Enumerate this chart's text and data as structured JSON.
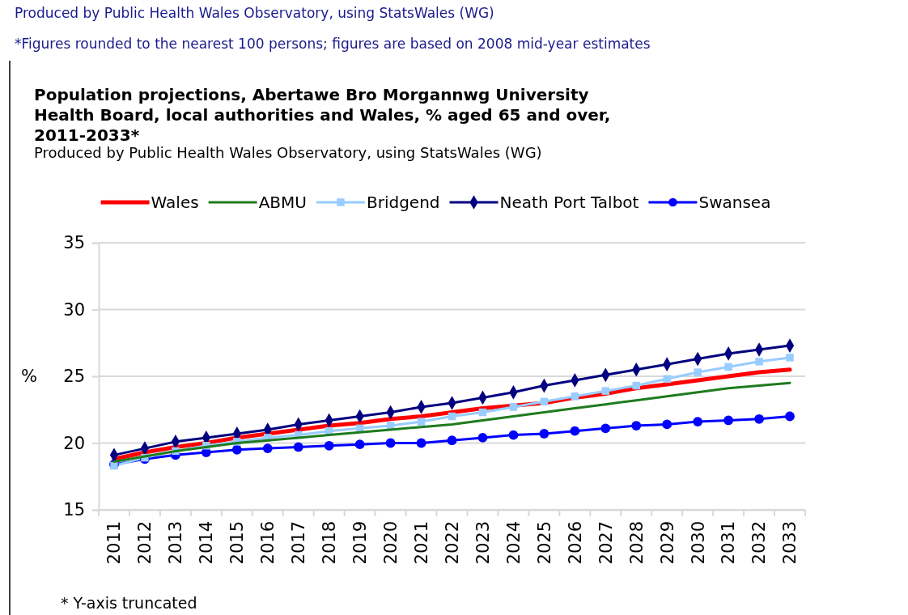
{
  "chart_data": {
    "type": "line",
    "title": "Population projections, Abertawe Bro Morgannwg University Health Board, local authorities and Wales, % aged 65 and over, 2011-2033*",
    "subtitle": "Produced by Public Health Wales Observatory, using StatsWales (WG)",
    "annotations": [
      "Produced by Public Health Wales Observatory, using StatsWales (WG)",
      "*Figures rounded to the nearest 100 persons; figures are based on 2008 mid-year estimates",
      "* Y-axis truncated"
    ],
    "ylabel": "%",
    "categories": [
      "2011",
      "2012",
      "2013",
      "2014",
      "2015",
      "2016",
      "2017",
      "2018",
      "2019",
      "2020",
      "2021",
      "2022",
      "2023",
      "2024",
      "2025",
      "2026",
      "2027",
      "2028",
      "2029",
      "2030",
      "2031",
      "2032",
      "2033"
    ],
    "series": [
      {
        "name": "Wales",
        "color": "#ff0000",
        "marker": "none",
        "values": [
          18.8,
          19.3,
          19.7,
          20.0,
          20.4,
          20.7,
          21.0,
          21.3,
          21.5,
          21.8,
          22.0,
          22.3,
          22.6,
          22.8,
          23.0,
          23.4,
          23.7,
          24.1,
          24.4,
          24.7,
          25.0,
          25.3,
          25.5
        ]
      },
      {
        "name": "ABMU",
        "color": "#1e7b1e",
        "marker": "none",
        "values": [
          18.6,
          19.0,
          19.4,
          19.7,
          20.0,
          20.2,
          20.4,
          20.6,
          20.8,
          21.0,
          21.2,
          21.4,
          21.7,
          22.0,
          22.3,
          22.6,
          22.9,
          23.2,
          23.5,
          23.8,
          24.1,
          24.3,
          24.5
        ]
      },
      {
        "name": "Bridgend",
        "color": "#99ccff",
        "marker": "square",
        "values": [
          18.3,
          18.9,
          19.4,
          19.8,
          20.1,
          20.4,
          20.6,
          20.9,
          21.1,
          21.3,
          21.6,
          22.0,
          22.3,
          22.7,
          23.1,
          23.5,
          23.9,
          24.3,
          24.8,
          25.3,
          25.7,
          26.1,
          26.4
        ]
      },
      {
        "name": "Neath Port Talbot",
        "color": "#000080",
        "marker": "diamond",
        "values": [
          19.1,
          19.6,
          20.1,
          20.4,
          20.7,
          21.0,
          21.4,
          21.7,
          22.0,
          22.3,
          22.7,
          23.0,
          23.4,
          23.8,
          24.3,
          24.7,
          25.1,
          25.5,
          25.9,
          26.3,
          26.7,
          27.0,
          27.3
        ]
      },
      {
        "name": "Swansea",
        "color": "#0000ff",
        "marker": "circle",
        "values": [
          18.4,
          18.8,
          19.1,
          19.3,
          19.5,
          19.6,
          19.7,
          19.8,
          19.9,
          20.0,
          20.0,
          20.2,
          20.4,
          20.6,
          20.7,
          20.9,
          21.1,
          21.3,
          21.4,
          21.6,
          21.7,
          21.8,
          22.0
        ]
      }
    ],
    "ylim": [
      15,
      35
    ],
    "yticks": [
      15,
      20,
      25,
      30,
      35
    ],
    "grid": "y",
    "legend": "top"
  }
}
